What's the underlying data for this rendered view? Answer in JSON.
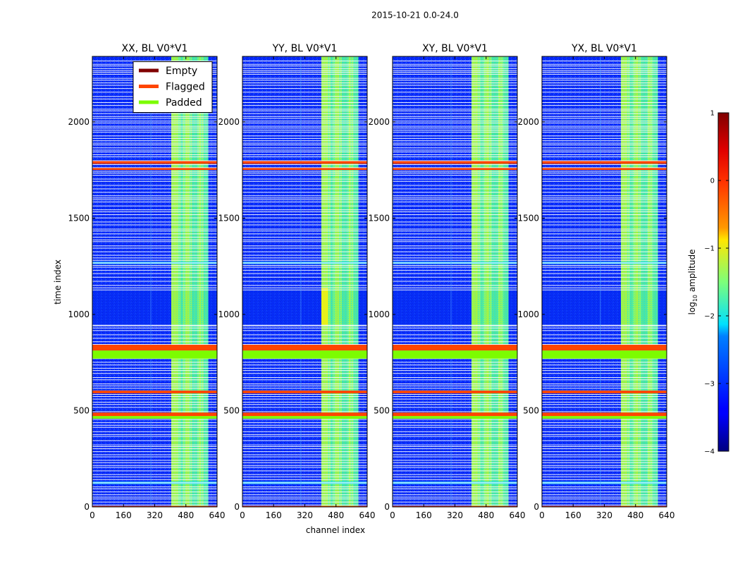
{
  "figure": {
    "suptitle": "2015-10-21 0.0-24.0"
  },
  "chart_data": {
    "type": "heatmap",
    "panels": [
      {
        "title": "XX, BL V0*V1",
        "pol": "XX"
      },
      {
        "title": "YY, BL V0*V1",
        "pol": "YY"
      },
      {
        "title": "XY, BL V0*V1",
        "pol": "XY"
      },
      {
        "title": "YX, BL V0*V1",
        "pol": "YX"
      }
    ],
    "xlabel": "channel index",
    "ylabel": "time index",
    "xlim": [
      0,
      640
    ],
    "ylim": [
      0,
      2340
    ],
    "xticks": [
      0,
      160,
      320,
      480,
      640
    ],
    "xtick_labels": [
      "0",
      "160",
      "320",
      "480",
      "640"
    ],
    "yticks": [
      0,
      500,
      1000,
      1500,
      2000
    ],
    "ytick_labels": [
      "0",
      "500",
      "1000",
      "1500",
      "2000"
    ],
    "legend": {
      "location": "upper-center of first panel",
      "entries": [
        {
          "label": "Empty",
          "color": "#800000"
        },
        {
          "label": "Flagged",
          "color": "#ff4500"
        },
        {
          "label": "Padded",
          "color": "#7cfc00"
        }
      ]
    },
    "colorbar": {
      "label": "log",
      "label_sub": "10",
      "label_rest": " amplitude",
      "range": [
        -4,
        1
      ],
      "ticks": [
        1,
        0,
        -1,
        -2,
        -3,
        -4
      ],
      "tick_labels": [
        "1",
        "0",
        "−1",
        "−2",
        "−3",
        "−4"
      ],
      "colormap": "jet"
    },
    "background_log_amplitude": -3.1,
    "rfi_channel_band": [
      405,
      595
    ],
    "rfi_sub_bands": [
      [
        405,
        438
      ],
      [
        452,
        465
      ],
      [
        478,
        495
      ],
      [
        510,
        540
      ],
      [
        548,
        555
      ],
      [
        570,
        595
      ]
    ],
    "flagged_time_bands": [
      {
        "kind": "Flagged",
        "range": [
          812,
          842
        ]
      },
      {
        "kind": "Padded",
        "range": [
          770,
          812
        ]
      },
      {
        "kind": "Flagged",
        "range": [
          590,
          604
        ]
      },
      {
        "kind": "Padded",
        "range": [
          458,
          472
        ]
      },
      {
        "kind": "Flagged",
        "range": [
          472,
          490
        ]
      },
      {
        "kind": "Flagged",
        "range": [
          1782,
          1796
        ]
      },
      {
        "kind": "Flagged",
        "range": [
          1750,
          1760
        ]
      },
      {
        "kind": "Flagged",
        "range": [
          0,
          5
        ]
      }
    ],
    "quiet_time_band": [
      945,
      1135
    ],
    "bright_time_rows": [
      1265,
      1270,
      122,
      128
    ]
  },
  "colors": {
    "empty": "#800000",
    "flagged": "#ff4500",
    "padded": "#7cfc00",
    "background_blue": "#0a2cff"
  }
}
